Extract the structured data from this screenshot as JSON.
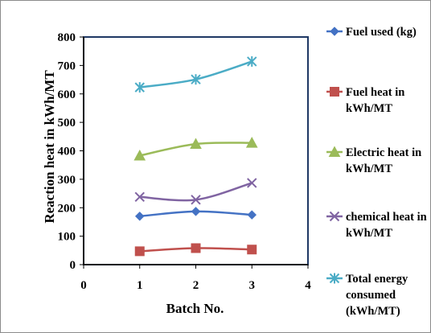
{
  "chart_data": {
    "type": "line",
    "xlabel": "Batch No.",
    "ylabel": "Reaction heat in kWh/MT",
    "xlim": [
      0,
      4
    ],
    "ylim": [
      0,
      800
    ],
    "x_ticks": [
      "0",
      "1",
      "2",
      "3",
      "4"
    ],
    "y_ticks": [
      "0",
      "100",
      "200",
      "300",
      "400",
      "500",
      "600",
      "700",
      "800"
    ],
    "grid": false,
    "smooth_lines": true,
    "legend_position": "right",
    "series": [
      {
        "name": "Fuel used (kg)",
        "x": [
          1,
          2,
          3
        ],
        "y": [
          170,
          187,
          175
        ],
        "color": "#4472c4",
        "marker": "diamond"
      },
      {
        "name": "Fuel heat in kWh/MT",
        "x": [
          1,
          2,
          3
        ],
        "y": [
          47,
          58,
          53
        ],
        "color": "#c0504d",
        "marker": "square"
      },
      {
        "name": "Electric heat in kWh/MT",
        "x": [
          1,
          2,
          3
        ],
        "y": [
          383,
          424,
          428
        ],
        "color": "#9bbb59",
        "marker": "triangle"
      },
      {
        "name": "chemical heat in kWh/MT",
        "x": [
          1,
          2,
          3
        ],
        "y": [
          238,
          228,
          287
        ],
        "color": "#8064a2",
        "marker": "x"
      },
      {
        "name": "Total energy consumed (kWh/MT)",
        "x": [
          1,
          2,
          3
        ],
        "y": [
          623,
          651,
          714
        ],
        "color": "#4bacc6",
        "marker": "star"
      }
    ]
  },
  "legend_lines": [
    [
      "Fuel used (kg)"
    ],
    [
      "Fuel heat in",
      "kWh/MT"
    ],
    [
      "Electric heat in",
      "kWh/MT"
    ],
    [
      "chemical heat in",
      "kWh/MT"
    ],
    [
      "Total energy",
      "consumed",
      "(kWh/MT)"
    ]
  ],
  "colors": {
    "plot_border": "#1f3864",
    "axis": "#000000",
    "frame_border": "#8c8c8c"
  }
}
